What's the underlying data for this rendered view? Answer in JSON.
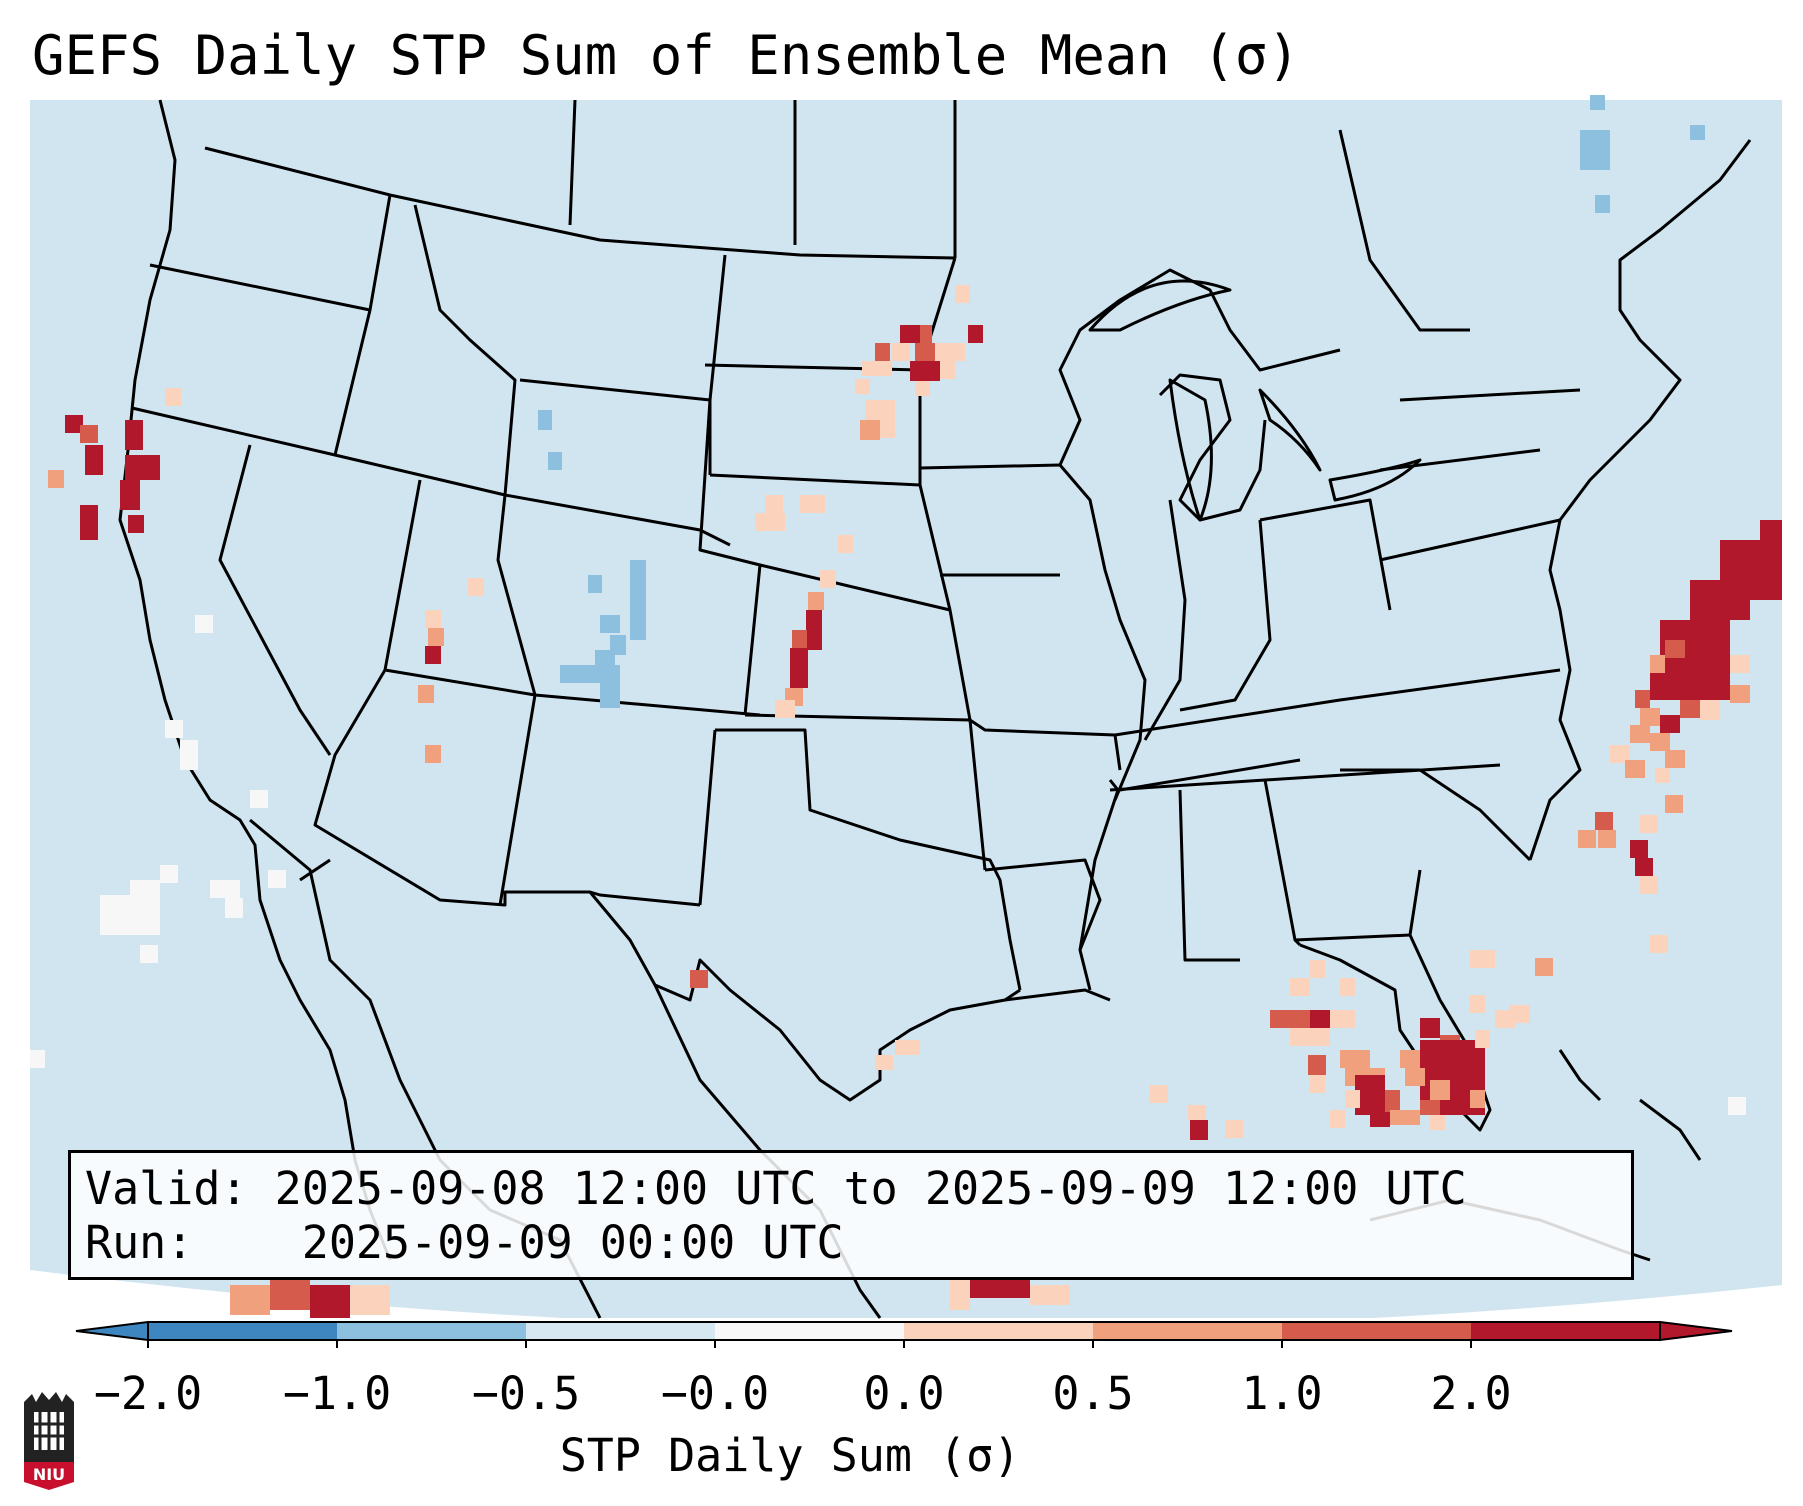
{
  "title": "GEFS Daily STP Sum of Ensemble Mean (σ)",
  "info": {
    "valid_label": "Valid:",
    "valid_text": "2025-09-08 12:00 UTC to 2025-09-09 12:00 UTC",
    "run_label": "Run:",
    "run_text": "2025-09-09 00:00 UTC"
  },
  "colorbar": {
    "label": "STP Daily Sum (σ)",
    "ticks": [
      "−2.0",
      "−1.0",
      "−0.5",
      "−0.0",
      "0.0",
      "0.5",
      "1.0",
      "2.0"
    ],
    "colors": [
      "#3d86c0",
      "#8cc0de",
      "#d6e7f2",
      "#f7f7f7",
      "#fbd3bd",
      "#f1a07e",
      "#d55c4d",
      "#b2182b"
    ],
    "extend": "both"
  },
  "colors": {
    "map_background": "#d1e5f0",
    "outside_projection": "#ffffff"
  },
  "logo": {
    "text": "NIU"
  },
  "map": {
    "region": "Contiguous United States",
    "projection_edge": "curved-bottom",
    "notable_signals": [
      "Florida peninsula strong positive",
      "Atlantic offshore band positive",
      "Northern California coast positive",
      "Central Plains positive",
      "Colorado weak negative"
    ]
  }
}
